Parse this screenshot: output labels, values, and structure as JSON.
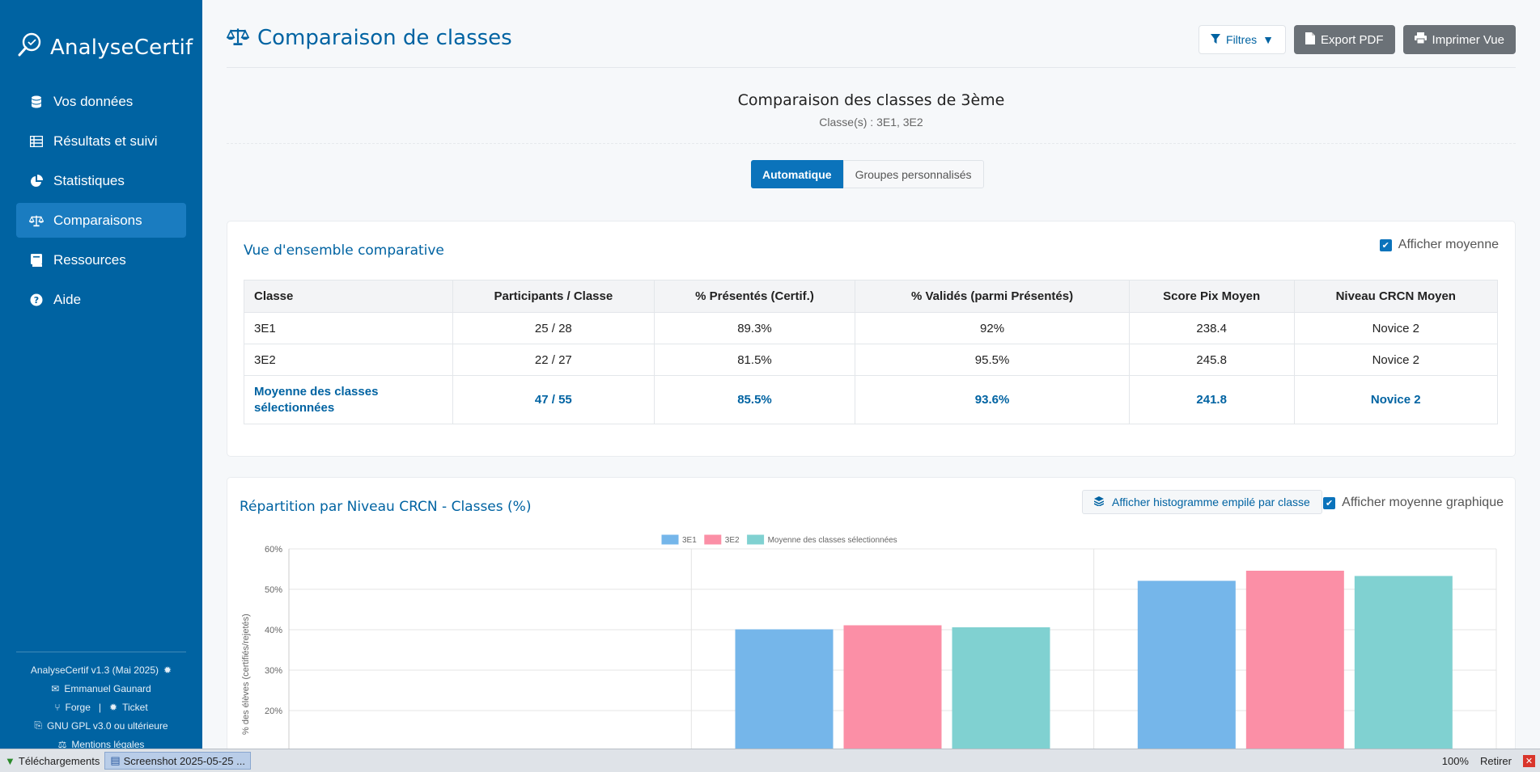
{
  "sidebar": {
    "brand": "AnalyseCertif",
    "items": [
      {
        "label": "Vos données"
      },
      {
        "label": "Résultats et suivi"
      },
      {
        "label": "Statistiques"
      },
      {
        "label": "Comparaisons"
      },
      {
        "label": "Ressources"
      },
      {
        "label": "Aide"
      }
    ],
    "footer": {
      "version": "AnalyseCertif v1.3 (Mai 2025)",
      "author": "Emmanuel Gaunard",
      "forge": "Forge",
      "separator": "|",
      "ticket": "Ticket",
      "license": "GNU GPL v3.0 ou ultérieure",
      "legal": "Mentions légales"
    }
  },
  "header": {
    "title": "Comparaison de classes",
    "filters": "Filtres",
    "export_pdf": "Export PDF",
    "print": "Imprimer Vue"
  },
  "comparison": {
    "title": "Comparaison des classes de 3ème",
    "subtitle": "Classe(s) : 3E1, 3E2",
    "mode_auto": "Automatique",
    "mode_custom": "Groupes personnalisés"
  },
  "overview": {
    "title": "Vue d'ensemble comparative",
    "show_avg": "Afficher moyenne",
    "columns": [
      "Classe",
      "Participants / Classe",
      "% Présentés (Certif.)",
      "% Validés (parmi Présentés)",
      "Score Pix Moyen",
      "Niveau CRCN Moyen"
    ],
    "rows": [
      [
        "3E1",
        "25 / 28",
        "89.3%",
        "92%",
        "238.4",
        "Novice 2"
      ],
      [
        "3E2",
        "22 / 27",
        "81.5%",
        "95.5%",
        "245.8",
        "Novice 2"
      ]
    ],
    "avg_row": [
      "Moyenne des classes sélectionnées",
      "47 / 55",
      "85.5%",
      "93.6%",
      "241.8",
      "Novice 2"
    ]
  },
  "chart_section": {
    "title": "Répartition par Niveau CRCN - Classes (%)",
    "stack_button": "Afficher histogramme empilé par classe",
    "show_avg_chart": "Afficher moyenne graphique"
  },
  "chart_data": {
    "type": "bar",
    "ylabel": "% des élèves (certifiés/rejetés)",
    "ylim": [
      0,
      60
    ],
    "yticks": [
      "60%",
      "50%",
      "40%",
      "30%",
      "20%"
    ],
    "categories": [
      "",
      "",
      ""
    ],
    "series": [
      {
        "name": "3E1",
        "values": [
          0,
          40,
          52
        ],
        "color": "#75b6ea"
      },
      {
        "name": "3E2",
        "values": [
          0,
          41,
          54.5
        ],
        "color": "#fb8fa6"
      },
      {
        "name": "Moyenne des classes sélectionnées",
        "values": [
          0,
          40.5,
          53.2
        ],
        "color": "#80d1d1"
      }
    ],
    "legend": "top-center",
    "grid": true
  },
  "taskbar": {
    "downloads": "Téléchargements",
    "screenshot": "Screenshot 2025-05-25 ...",
    "zoom": "100%",
    "retirer": "Retirer",
    "close": "✕"
  },
  "colors": {
    "primary": "#0063a2",
    "accent": "#0b73bb"
  }
}
